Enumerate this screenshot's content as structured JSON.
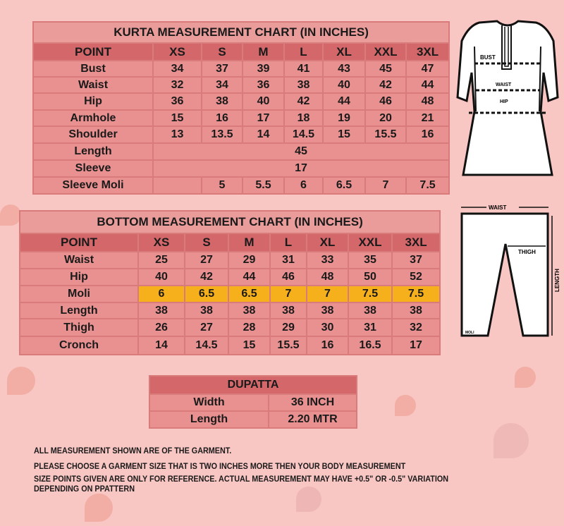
{
  "kurta": {
    "title": "KURTA MEASUREMENT CHART (IN INCHES)",
    "headers": [
      "POINT",
      "XS",
      "S",
      "M",
      "L",
      "XL",
      "XXL",
      "3XL"
    ],
    "rows": [
      {
        "point": "Bust",
        "values": [
          "34",
          "37",
          "39",
          "41",
          "43",
          "45",
          "47"
        ]
      },
      {
        "point": "Waist",
        "values": [
          "32",
          "34",
          "36",
          "38",
          "40",
          "42",
          "44"
        ]
      },
      {
        "point": "Hip",
        "values": [
          "36",
          "38",
          "40",
          "42",
          "44",
          "46",
          "48"
        ]
      },
      {
        "point": "Armhole",
        "values": [
          "15",
          "16",
          "17",
          "18",
          "19",
          "20",
          "21"
        ]
      },
      {
        "point": "Shoulder",
        "values": [
          "13",
          "13.5",
          "14",
          "14.5",
          "15",
          "15.5",
          "16"
        ]
      },
      {
        "point": "Length",
        "span": "45"
      },
      {
        "point": "Sleeve",
        "span": "17"
      },
      {
        "point": "Sleeve Moli",
        "values": [
          "",
          "5",
          "5.5",
          "6",
          "6.5",
          "7",
          "7.5"
        ]
      }
    ]
  },
  "bottom": {
    "title": "BOTTOM MEASUREMENT CHART (IN INCHES)",
    "headers": [
      "POINT",
      "XS",
      "S",
      "M",
      "L",
      "XL",
      "XXL",
      "3XL"
    ],
    "highlight_color": "#f6b01c",
    "rows": [
      {
        "point": "Waist",
        "values": [
          "25",
          "27",
          "29",
          "31",
          "33",
          "35",
          "37"
        ]
      },
      {
        "point": "Hip",
        "values": [
          "40",
          "42",
          "44",
          "46",
          "48",
          "50",
          "52"
        ]
      },
      {
        "point": "Moli",
        "values": [
          "6",
          "6.5",
          "6.5",
          "7",
          "7",
          "7.5",
          "7.5"
        ],
        "highlight": true
      },
      {
        "point": "Length",
        "values": [
          "38",
          "38",
          "38",
          "38",
          "38",
          "38",
          "38"
        ]
      },
      {
        "point": "Thigh",
        "values": [
          "26",
          "27",
          "28",
          "29",
          "30",
          "31",
          "32"
        ]
      },
      {
        "point": "Cronch",
        "values": [
          "14",
          "14.5",
          "15",
          "15.5",
          "16",
          "16.5",
          "17"
        ]
      }
    ]
  },
  "dupatta": {
    "title": "DUPATTA",
    "rows": [
      {
        "point": "Width",
        "value": "36 INCH"
      },
      {
        "point": "Length",
        "value": "2.20 MTR"
      }
    ]
  },
  "diagrams": {
    "kurta_labels": {
      "bust": "BUST",
      "waist": "WAIST",
      "hip": "HIP"
    },
    "pants_labels": {
      "waist": "WAIST",
      "thigh": "THIGH",
      "length": "LENGTH",
      "moli": "MOLI"
    }
  },
  "notes": [
    "ALL MEASUREMENT SHOWN ARE OF THE  GARMENT.",
    "PLEASE CHOOSE A GARMENT SIZE THAT IS TWO INCHES MORE THEN YOUR BODY MEASUREMENT",
    "SIZE POINTS GIVEN ARE ONLY FOR REFERENCE. ACTUAL MEASUREMENT MAY HAVE  +0.5\" OR -0.5\" VARIATION",
    "DEPENDING ON PPATTERN"
  ]
}
